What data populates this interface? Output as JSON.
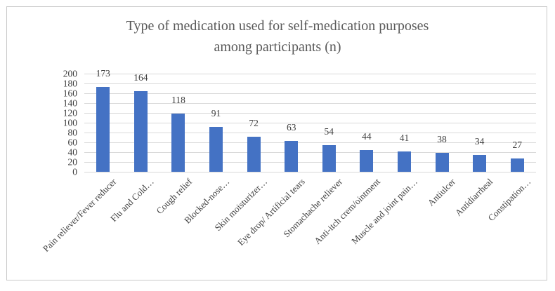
{
  "figure": {
    "title_line1": "Type of medication used for self-medication purposes",
    "title_line2": "among participants (n)"
  },
  "chart_data": {
    "type": "bar",
    "title": "Type of medication used for self-medication purposes among participants (n)",
    "categories": [
      "Pain reliever/Fever reducer",
      "Flu and Cold…",
      "Cough relief",
      "Blocked-nose…",
      "Skin moisturizer…",
      "Eye drop/ Artificial tears",
      "Stomachache reliever",
      "Anti-itch crem/ointment",
      "Muscle and joint pain…",
      "Antiulcer",
      "Antidiarrheal",
      "Constipation…"
    ],
    "values": [
      173,
      164,
      118,
      91,
      72,
      63,
      54,
      44,
      41,
      38,
      34,
      27
    ],
    "data_labels_shown": true,
    "xlabel": "",
    "ylabel": "",
    "ylim": [
      0,
      200
    ],
    "yticks": [
      0,
      20,
      40,
      60,
      80,
      100,
      120,
      140,
      160,
      180,
      200
    ],
    "grid": true,
    "legend": "none",
    "x_label_rotation_deg": 45,
    "bar_color": "#4472c4",
    "gridline_color": "#d9d9d9",
    "text_color": "#404040",
    "title_color": "#595959"
  }
}
